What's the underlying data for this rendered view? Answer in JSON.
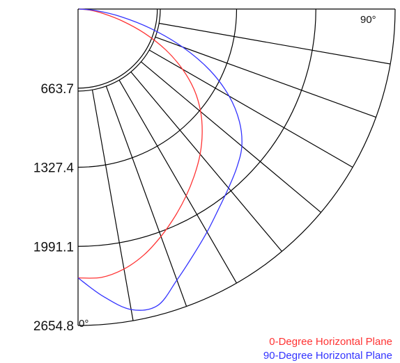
{
  "chart_data": {
    "type": "polar",
    "title": "",
    "radial_ticks": [
      "663.7",
      "1327.4",
      "1991.1",
      "2654.8"
    ],
    "radial_values": [
      663.7,
      1327.4,
      1991.1,
      2654.8
    ],
    "rmax": 2654.8,
    "angle_labels": {
      "start": "0°",
      "end": "90°"
    },
    "angle_range_deg": [
      0,
      90
    ],
    "angle_step_deg": 10,
    "series": [
      {
        "name": "0-Degree Horizontal Plane",
        "color": "#ff3333",
        "angles_deg": [
          0,
          5,
          10,
          15,
          20,
          25,
          30,
          35,
          40,
          45,
          50,
          55,
          60,
          65,
          70,
          75,
          80,
          85,
          90
        ],
        "values": [
          2256,
          2260,
          2215,
          2135,
          2030,
          1920,
          1810,
          1700,
          1590,
          1470,
          1340,
          1190,
          1010,
          810,
          590,
          380,
          210,
          95,
          10
        ]
      },
      {
        "name": "90-Degree Horizontal Plane",
        "color": "#3333ff",
        "angles_deg": [
          0,
          5,
          10,
          15,
          20,
          25,
          30,
          35,
          40,
          45,
          50,
          55,
          60,
          65,
          70,
          75,
          80,
          85,
          90
        ],
        "values": [
          2256,
          2420,
          2560,
          2575,
          2420,
          2280,
          2160,
          2050,
          1960,
          1880,
          1790,
          1650,
          1460,
          1220,
          930,
          630,
          360,
          150,
          10
        ]
      }
    ],
    "legend_position": "bottom-right"
  }
}
